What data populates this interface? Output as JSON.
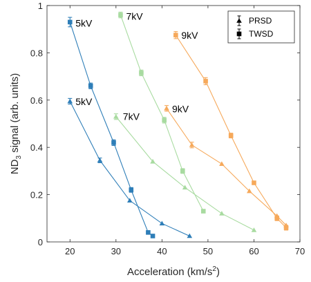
{
  "chart_data": {
    "type": "scatter",
    "xlabel": "Acceleration (km/s",
    "xlabel_sup": "2",
    "xlabel_end": ")",
    "ylabel": "ND",
    "ylabel_sub": "3",
    "ylabel_end": " signal (arb. units)",
    "xlim": [
      15,
      70
    ],
    "ylim": [
      0,
      1
    ],
    "xticks": [
      20,
      30,
      40,
      50,
      60,
      70
    ],
    "yticks": [
      0,
      0.2,
      0.4,
      0.6,
      0.8,
      1
    ],
    "ytick_labels": [
      "0",
      "0.2",
      "0.4",
      "0.6",
      "0.8",
      "1"
    ],
    "grid": false,
    "legend": {
      "position": "top-right",
      "entries": [
        {
          "label": "PRSD",
          "marker": "triangle"
        },
        {
          "label": "TWSD",
          "marker": "square"
        }
      ]
    },
    "series": [
      {
        "name": "",
        "voltage": "5kV",
        "method": "TWSD",
        "marker": "square",
        "color": "#2E7EB8",
        "x": [
          20,
          24.5,
          29.5,
          33.3,
          37,
          38
        ],
        "y": [
          0.93,
          0.66,
          0.42,
          0.22,
          0.04,
          0.025
        ],
        "err": [
          0.02,
          0.012,
          0.012,
          0.01,
          0.0,
          0.0
        ]
      },
      {
        "name": "",
        "voltage": "5kV",
        "method": "PRSD",
        "marker": "triangle",
        "color": "#2E7EB8",
        "x": [
          20,
          26.5,
          33,
          40,
          46
        ],
        "y": [
          0.595,
          0.345,
          0.175,
          0.078,
          0.025
        ],
        "err": [
          0.012,
          0.01,
          0.0,
          0.0,
          0.0
        ]
      },
      {
        "name": "",
        "voltage": "7kV",
        "method": "TWSD",
        "marker": "square",
        "color": "#A8DBA0",
        "x": [
          31,
          35.5,
          40.5,
          44.5,
          49
        ],
        "y": [
          0.96,
          0.715,
          0.515,
          0.3,
          0.13
        ],
        "err": [
          0.012,
          0.012,
          0.012,
          0.01,
          0.0
        ]
      },
      {
        "name": "",
        "voltage": "7kV",
        "method": "PRSD",
        "marker": "triangle",
        "color": "#A8DBA0",
        "x": [
          30,
          38,
          45,
          53,
          60
        ],
        "y": [
          0.53,
          0.34,
          0.23,
          0.12,
          0.05
        ],
        "err": [
          0.012,
          0.0,
          0.0,
          0.0,
          0.0
        ]
      },
      {
        "name": "",
        "voltage": "9kV",
        "method": "TWSD",
        "marker": "square",
        "color": "#F6A95B",
        "x": [
          43,
          49.5,
          55,
          60,
          65,
          67
        ],
        "y": [
          0.875,
          0.68,
          0.45,
          0.25,
          0.1,
          0.06
        ],
        "err": [
          0.015,
          0.015,
          0.01,
          0.0,
          0.01,
          0.01
        ]
      },
      {
        "name": "",
        "voltage": "9kV",
        "method": "PRSD",
        "marker": "triangle",
        "color": "#F6A95B",
        "x": [
          41,
          46.5,
          53,
          59,
          65,
          67
        ],
        "y": [
          0.565,
          0.41,
          0.33,
          0.215,
          0.11,
          0.07
        ],
        "err": [
          0.012,
          0.012,
          0.0,
          0.0,
          0.0,
          0.0
        ]
      }
    ],
    "annotations": [
      {
        "text": "5kV",
        "x": 21.2,
        "y": 0.925
      },
      {
        "text": "7kV",
        "x": 32.2,
        "y": 0.955
      },
      {
        "text": "9kV",
        "x": 44.2,
        "y": 0.875
      },
      {
        "text": "5kV",
        "x": 21.2,
        "y": 0.593
      },
      {
        "text": "7kV",
        "x": 31.5,
        "y": 0.53
      },
      {
        "text": "9kV",
        "x": 42.2,
        "y": 0.563
      }
    ]
  }
}
